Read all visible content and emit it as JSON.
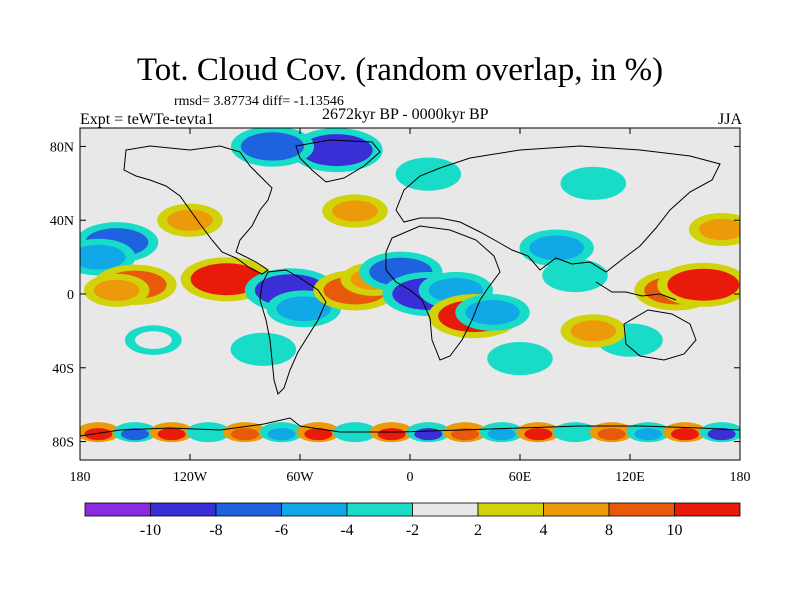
{
  "title": "Tot. Cloud Cov. (random overlap, in %)",
  "stats": "rmsd= 3.87734 diff= -1.13546",
  "period": "2672kyr BP - 0000kyr BP",
  "experiment": "Expt = teWTe-tevta1",
  "season": "JJA",
  "chart_data": {
    "type": "heatmap",
    "projection": "cylindrical equidistant",
    "lon_ticks": [
      "180",
      "120W",
      "60W",
      "0",
      "60E",
      "120E",
      "180"
    ],
    "lon_tick_values": [
      -180,
      -120,
      -60,
      0,
      60,
      120,
      180
    ],
    "lat_ticks": [
      "80N",
      "40N",
      "0",
      "40S",
      "80S"
    ],
    "lat_tick_values": [
      80,
      40,
      0,
      -40,
      -80
    ],
    "lat_range": [
      -90,
      90
    ],
    "lon_range": [
      -180,
      180
    ],
    "colorbar": {
      "labels": [
        "-10",
        "-8",
        "-6",
        "-4",
        "-2",
        "2",
        "4",
        "8",
        "10"
      ],
      "colors": [
        "#8b2be2",
        "#3a2fd6",
        "#1e62e0",
        "#10a8e6",
        "#19dcc8",
        "#e8e8e8",
        "#d2d20a",
        "#ec9a0a",
        "#e85a0a",
        "#e81a0a"
      ]
    },
    "anomaly_regions": [
      {
        "lon": -40,
        "lat": 78,
        "value": -10
      },
      {
        "lon": -75,
        "lat": 80,
        "value": -8
      },
      {
        "lon": -160,
        "lat": 28,
        "value": -8
      },
      {
        "lon": -170,
        "lat": 20,
        "value": -6
      },
      {
        "lon": -120,
        "lat": 40,
        "value": 4
      },
      {
        "lon": -100,
        "lat": 8,
        "value": 10
      },
      {
        "lon": -150,
        "lat": 5,
        "value": 8
      },
      {
        "lon": -160,
        "lat": 2,
        "value": 4
      },
      {
        "lon": -65,
        "lat": 2,
        "value": -10
      },
      {
        "lon": -58,
        "lat": -8,
        "value": -6
      },
      {
        "lon": -30,
        "lat": 2,
        "value": 8
      },
      {
        "lon": -20,
        "lat": 8,
        "value": 4
      },
      {
        "lon": -5,
        "lat": 12,
        "value": -8
      },
      {
        "lon": 10,
        "lat": 0,
        "value": -10
      },
      {
        "lon": 25,
        "lat": 2,
        "value": -6
      },
      {
        "lon": 35,
        "lat": -12,
        "value": 10
      },
      {
        "lon": 45,
        "lat": -10,
        "value": -6
      },
      {
        "lon": 90,
        "lat": 10,
        "value": -4
      },
      {
        "lon": 80,
        "lat": 25,
        "value": -6
      },
      {
        "lon": 145,
        "lat": 2,
        "value": 8
      },
      {
        "lon": 160,
        "lat": 5,
        "value": 10
      },
      {
        "lon": 170,
        "lat": 35,
        "value": 4
      },
      {
        "lon": -30,
        "lat": 45,
        "value": 4
      },
      {
        "lon": 10,
        "lat": 65,
        "value": -4
      },
      {
        "lon": 100,
        "lat": 60,
        "value": -4
      },
      {
        "lon": 120,
        "lat": -25,
        "value": -4
      },
      {
        "lon": -80,
        "lat": -30,
        "value": -4
      },
      {
        "lon": -140,
        "lat": -25,
        "value": -2
      },
      {
        "lon": 60,
        "lat": -35,
        "value": -4
      },
      {
        "lon": 100,
        "lat": -20,
        "value": 4
      }
    ],
    "southern_band": [
      {
        "lon": -170,
        "value": 10
      },
      {
        "lon": -150,
        "value": -8
      },
      {
        "lon": -130,
        "value": 10
      },
      {
        "lon": -110,
        "value": -4
      },
      {
        "lon": -90,
        "value": 8
      },
      {
        "lon": -70,
        "value": -6
      },
      {
        "lon": -50,
        "value": 10
      },
      {
        "lon": -30,
        "value": -4
      },
      {
        "lon": -10,
        "value": 10
      },
      {
        "lon": 10,
        "value": -10
      },
      {
        "lon": 30,
        "value": 8
      },
      {
        "lon": 50,
        "value": -6
      },
      {
        "lon": 70,
        "value": 10
      },
      {
        "lon": 90,
        "value": -4
      },
      {
        "lon": 110,
        "value": 8
      },
      {
        "lon": 130,
        "value": -6
      },
      {
        "lon": 150,
        "value": 10
      },
      {
        "lon": 170,
        "value": -10
      }
    ]
  }
}
